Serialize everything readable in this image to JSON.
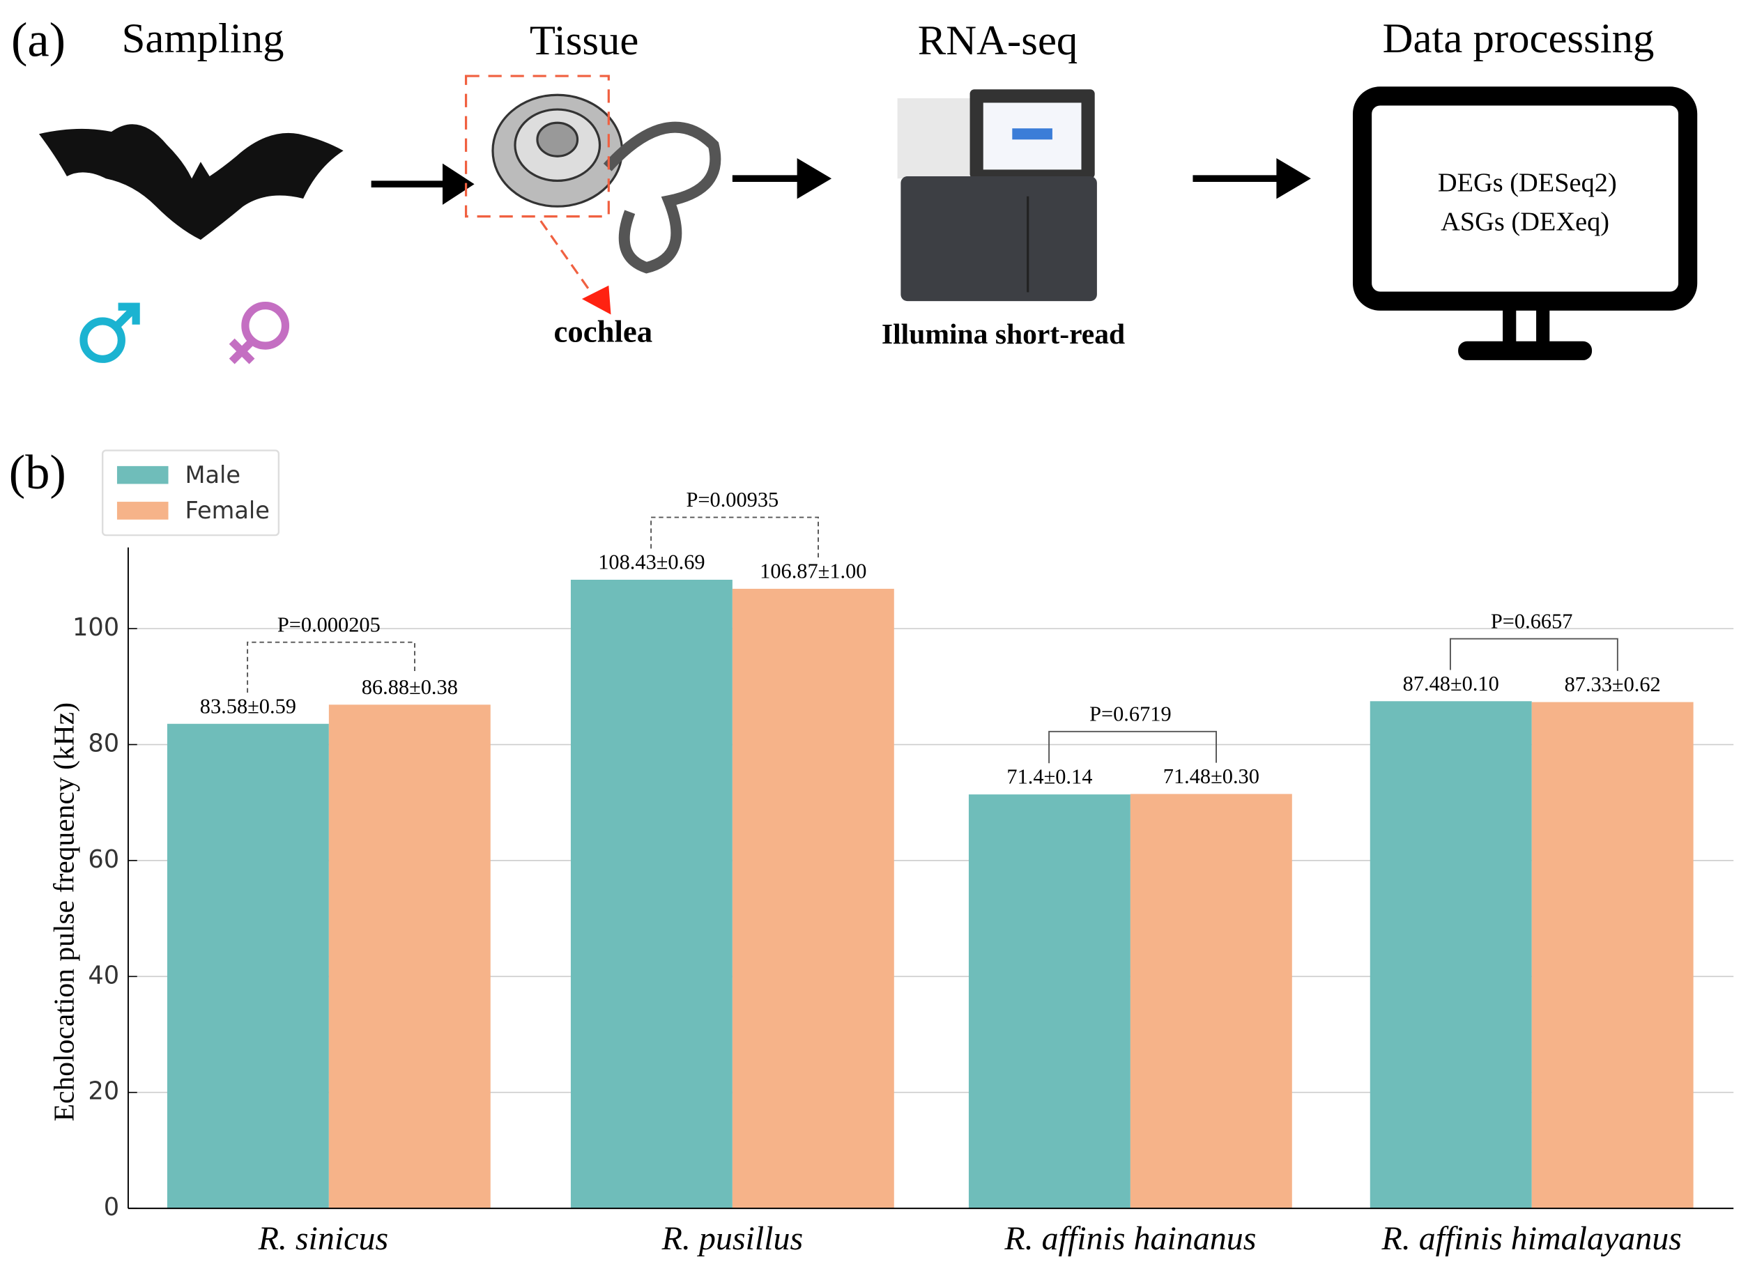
{
  "panel_a": {
    "label": "(a)",
    "steps": [
      "Sampling",
      "Tissue",
      "RNA-seq",
      "Data processing"
    ],
    "tissue_caption": "cochlea",
    "sequencer_caption": "Illumina short-read",
    "screen_lines": [
      "DEGs (DESeq2)",
      "ASGs (DEXeq)"
    ]
  },
  "chart_data": {
    "type": "bar",
    "panel_label": "(b)",
    "y_label": "Echolocation pulse frequency (kHz)",
    "categories": [
      "R. sinicus",
      "R. pusillus",
      "R. affinis hainanus",
      "R. affinis himalayanus"
    ],
    "series": [
      {
        "name": "Male",
        "color": "#6fbdba",
        "values": [
          83.58,
          108.43,
          71.4,
          87.48
        ],
        "value_labels": [
          "83.58±0.59",
          "108.43±0.69",
          "71.4±0.14",
          "87.48±0.10"
        ]
      },
      {
        "name": "Female",
        "color": "#f6b389",
        "values": [
          86.88,
          106.87,
          71.48,
          87.33
        ],
        "value_labels": [
          "86.88±0.38",
          "106.87±1.00",
          "71.48±0.30",
          "87.33±0.62"
        ]
      }
    ],
    "annotations": [
      "P=0.000205",
      "P=0.00935",
      "P=0.6719",
      "P=0.6657"
    ],
    "ylim": [
      0,
      114
    ],
    "yticks": [
      0,
      20,
      40,
      60,
      80,
      100
    ],
    "grid": true,
    "legend": "upper left"
  }
}
